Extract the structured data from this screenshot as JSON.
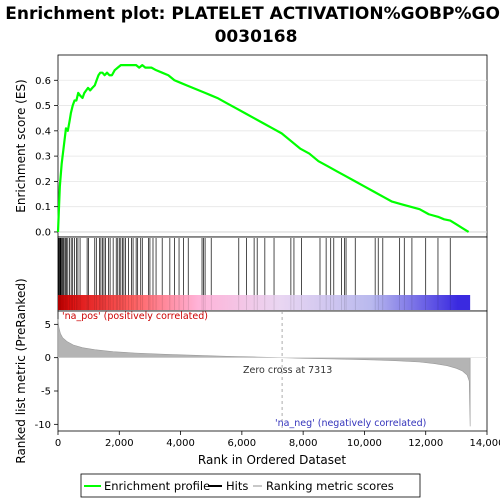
{
  "chart_data": {
    "type": "line",
    "title_line1": "Enrichment plot: PLATELET ACTIVATION%GOBP%GO:",
    "title_line2": "0030168",
    "es_panel": {
      "ylabel": "Enrichment score (ES)",
      "ylim": [
        -0.02,
        0.7
      ],
      "yticks": [
        "0.0",
        "0.1",
        "0.2",
        "0.3",
        "0.4",
        "0.5",
        "0.6"
      ],
      "ytick_values": [
        0.0,
        0.1,
        0.2,
        0.3,
        0.4,
        0.5,
        0.6
      ],
      "line_color": "#00ff00",
      "series": [
        {
          "x": [
            0,
            60,
            120,
            200,
            260,
            320,
            380,
            420,
            480,
            540,
            600,
            660,
            720,
            800,
            860,
            920,
            980,
            1050,
            1120,
            1200,
            1260,
            1320,
            1380,
            1450,
            1520,
            1600,
            1680,
            1760,
            1850,
            1950,
            2050,
            2150,
            2250,
            2350,
            2450,
            2550,
            2650,
            2750,
            2850,
            2950,
            3050,
            3200,
            3400,
            3600,
            3800,
            4000,
            4200,
            4400,
            4600,
            4800,
            5000,
            5200,
            5500,
            5800,
            6100,
            6400,
            6700,
            7000,
            7300,
            7600,
            7900,
            8200,
            8500,
            8800,
            9100,
            9400,
            9700,
            10000,
            10300,
            10600,
            10900,
            11200,
            11500,
            11800,
            12100,
            12400,
            12600,
            12800,
            13000,
            13200,
            13400
          ],
          "y": [
            0.0,
            0.18,
            0.27,
            0.35,
            0.41,
            0.4,
            0.44,
            0.47,
            0.5,
            0.52,
            0.52,
            0.55,
            0.54,
            0.53,
            0.55,
            0.56,
            0.57,
            0.56,
            0.57,
            0.58,
            0.6,
            0.62,
            0.63,
            0.63,
            0.62,
            0.63,
            0.62,
            0.62,
            0.64,
            0.65,
            0.66,
            0.66,
            0.66,
            0.66,
            0.66,
            0.66,
            0.65,
            0.66,
            0.65,
            0.65,
            0.65,
            0.64,
            0.63,
            0.62,
            0.6,
            0.59,
            0.58,
            0.57,
            0.56,
            0.55,
            0.54,
            0.53,
            0.51,
            0.49,
            0.47,
            0.45,
            0.43,
            0.41,
            0.39,
            0.36,
            0.33,
            0.31,
            0.28,
            0.26,
            0.24,
            0.22,
            0.2,
            0.18,
            0.16,
            0.14,
            0.12,
            0.11,
            0.1,
            0.09,
            0.07,
            0.06,
            0.05,
            0.045,
            0.03,
            0.015,
            0.0
          ]
        }
      ]
    },
    "hits_panel": {
      "hit_ranks": [
        10,
        30,
        50,
        70,
        90,
        110,
        140,
        170,
        200,
        240,
        280,
        320,
        380,
        430,
        480,
        540,
        600,
        650,
        720,
        950,
        1000,
        1200,
        1250,
        1350,
        1400,
        1450,
        1500,
        1550,
        1650,
        1700,
        1800,
        1900,
        1950,
        2000,
        2050,
        2100,
        2150,
        2200,
        2300,
        2400,
        2450,
        2550,
        2600,
        2700,
        2750,
        2950,
        3000,
        3100,
        3200,
        3400,
        3650,
        3800,
        3950,
        4100,
        4250,
        4700,
        4750,
        4800,
        5000,
        5900,
        6150,
        6400,
        6500,
        6750,
        7050,
        7600,
        7700,
        7950,
        8550,
        8750,
        8900,
        9000,
        9250,
        9350,
        9400,
        9700,
        10350,
        10450,
        10600,
        11150,
        11300,
        11550,
        12000,
        12400,
        12800
      ]
    },
    "ranked_panel": {
      "ylabel": "Ranked list metric (PreRanked)",
      "ylim": [
        -11,
        7
      ],
      "yticks": [
        "5",
        "0",
        "-5",
        "-10"
      ],
      "ytick_values": [
        5,
        0,
        -5,
        -10
      ],
      "pos_label": "'na_pos' (positively correlated)",
      "neg_label": "'na_neg' (negatively correlated)",
      "zero_cross_label": "Zero cross at 7313",
      "zero_cross": 7313,
      "metric_curve": {
        "x": [
          0,
          30,
          80,
          150,
          300,
          500,
          800,
          1200,
          1800,
          2500,
          3500,
          4500,
          5500,
          6500,
          7313,
          8000,
          9000,
          10000,
          11000,
          11800,
          12300,
          12700,
          13000,
          13200,
          13350,
          13420,
          13450
        ],
        "y": [
          5.8,
          4.5,
          3.6,
          3.0,
          2.4,
          1.9,
          1.5,
          1.2,
          0.9,
          0.7,
          0.5,
          0.35,
          0.2,
          0.1,
          0.0,
          -0.1,
          -0.2,
          -0.3,
          -0.45,
          -0.65,
          -0.9,
          -1.2,
          -1.6,
          -2.0,
          -2.6,
          -3.5,
          -10.3
        ]
      }
    },
    "xaxis": {
      "xlabel": "Rank in Ordered Dataset",
      "xlim": [
        0,
        14000
      ],
      "xticks": [
        "0",
        "2,000",
        "4,000",
        "6,000",
        "8,000",
        "10,000",
        "12,000",
        "14,000"
      ],
      "xtick_values": [
        0,
        2000,
        4000,
        6000,
        8000,
        10000,
        12000,
        14000
      ],
      "n_ranks": 13450
    },
    "legend": {
      "items": [
        {
          "label": "Enrichment profile",
          "color": "#00ff00"
        },
        {
          "label": "Hits",
          "color": "#000000"
        },
        {
          "label": "Ranking metric scores",
          "color": "#c8c8c8"
        }
      ]
    }
  }
}
